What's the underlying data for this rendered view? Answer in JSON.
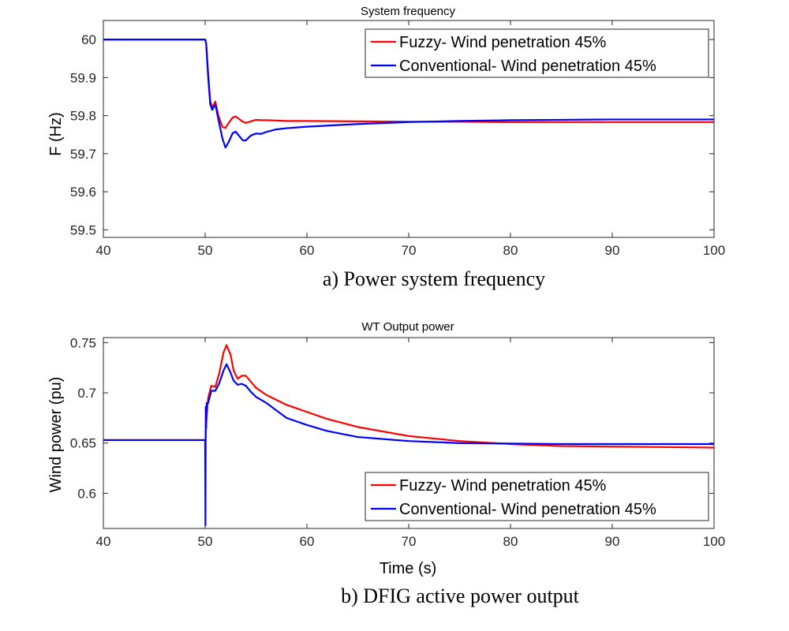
{
  "chart_data": [
    {
      "type": "line",
      "title": "System frequency",
      "xlabel": "",
      "ylabel": "F (Hz)",
      "caption": "a) Power system frequency",
      "xlim": [
        40,
        100
      ],
      "ylim": [
        59.48,
        60.05
      ],
      "xticks": [
        40,
        50,
        60,
        70,
        80,
        90,
        100
      ],
      "yticks": [
        59.5,
        59.6,
        59.7,
        59.8,
        59.9,
        60
      ],
      "ytick_labels": [
        "59.5",
        "59.6",
        "59.7",
        "59.8",
        "59.9",
        "60"
      ],
      "legend_position": "top-right",
      "series": [
        {
          "name": "Fuzzy- Wind penetration 45%",
          "color": "#ff0000",
          "x": [
            40,
            50,
            50.1,
            50.3,
            50.5,
            50.7,
            51,
            51.3,
            51.7,
            52,
            52.3,
            52.7,
            53,
            53.3,
            53.7,
            54,
            54.5,
            55,
            55.5,
            56,
            57,
            58,
            60,
            65,
            70,
            75,
            80,
            85,
            90,
            95,
            100
          ],
          "y": [
            60,
            60,
            59.99,
            59.91,
            59.84,
            59.82,
            59.837,
            59.8,
            59.77,
            59.768,
            59.78,
            59.795,
            59.798,
            59.792,
            59.784,
            59.781,
            59.785,
            59.789,
            59.788,
            59.788,
            59.787,
            59.786,
            59.786,
            59.785,
            59.784,
            59.784,
            59.783,
            59.783,
            59.783,
            59.783,
            59.783
          ]
        },
        {
          "name": "Conventional- Wind penetration 45%",
          "color": "#0000ff",
          "x": [
            40,
            50,
            50.1,
            50.3,
            50.5,
            50.7,
            51,
            51.3,
            51.7,
            52,
            52.3,
            52.7,
            53,
            53.3,
            53.7,
            54,
            54.5,
            55,
            55.5,
            56,
            57,
            58,
            60,
            65,
            70,
            75,
            80,
            85,
            90,
            95,
            100
          ],
          "y": [
            60,
            60,
            59.99,
            59.9,
            59.83,
            59.815,
            59.83,
            59.79,
            59.74,
            59.716,
            59.73,
            59.754,
            59.758,
            59.748,
            59.735,
            59.735,
            59.748,
            59.753,
            59.752,
            59.757,
            59.764,
            59.767,
            59.771,
            59.778,
            59.783,
            59.786,
            59.788,
            59.789,
            59.79,
            59.79,
            59.79
          ]
        }
      ]
    },
    {
      "type": "line",
      "title": "WT Output power",
      "xlabel": "Time (s)",
      "ylabel": "Wind power (pu)",
      "caption": "b) DFIG active power output",
      "xlim": [
        40,
        100
      ],
      "ylim": [
        0.565,
        0.755
      ],
      "xticks": [
        40,
        50,
        60,
        70,
        80,
        90,
        100
      ],
      "yticks": [
        0.6,
        0.65,
        0.7,
        0.75
      ],
      "ytick_labels": [
        "0.6",
        "0.65",
        "0.7",
        "0.75"
      ],
      "legend_position": "bottom-right",
      "series": [
        {
          "name": "Fuzzy- Wind penetration 45%",
          "color": "#ff0000",
          "x": [
            40,
            50,
            50.05,
            50.1,
            50.3,
            50.6,
            51,
            51.4,
            51.8,
            52.1,
            52.5,
            52.8,
            53.2,
            53.6,
            54,
            54.5,
            55,
            56,
            58,
            60,
            62,
            65,
            70,
            75,
            80,
            85,
            90,
            95,
            100
          ],
          "y": [
            0.653,
            0.653,
            0.6535,
            0.67,
            0.695,
            0.707,
            0.706,
            0.72,
            0.74,
            0.7475,
            0.738,
            0.722,
            0.714,
            0.717,
            0.717,
            0.711,
            0.705,
            0.698,
            0.688,
            0.681,
            0.674,
            0.666,
            0.657,
            0.652,
            0.649,
            0.647,
            0.6465,
            0.646,
            0.6455
          ]
        },
        {
          "name": "Conventional- Wind penetration 45%",
          "color": "#0000ff",
          "x": [
            40,
            50,
            50.03,
            50.06,
            50.1,
            50.15,
            50.3,
            50.6,
            51,
            51.4,
            51.8,
            52.1,
            52.5,
            52.8,
            53.2,
            53.6,
            54,
            54.5,
            55,
            56,
            58,
            60,
            62,
            65,
            70,
            75,
            80,
            85,
            90,
            95,
            100
          ],
          "y": [
            0.653,
            0.653,
            0.568,
            0.686,
            0.665,
            0.69,
            0.69,
            0.702,
            0.702,
            0.71,
            0.722,
            0.7285,
            0.72,
            0.712,
            0.708,
            0.709,
            0.707,
            0.701,
            0.696,
            0.69,
            0.675,
            0.668,
            0.662,
            0.656,
            0.652,
            0.65,
            0.6495,
            0.649,
            0.649,
            0.649,
            0.649
          ]
        }
      ]
    }
  ]
}
